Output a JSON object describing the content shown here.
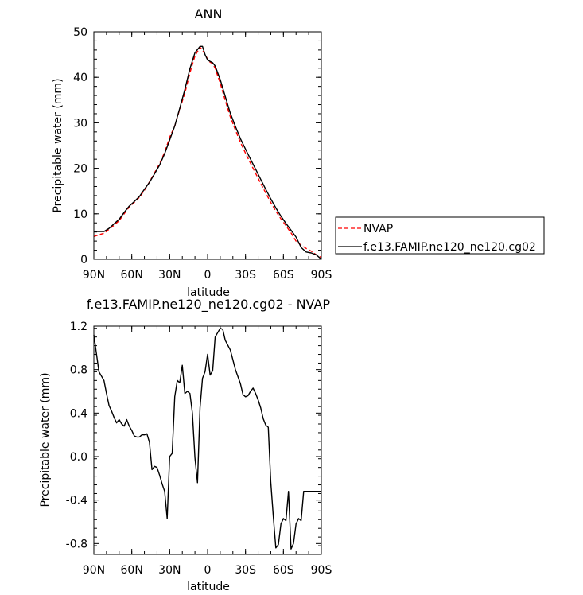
{
  "chart_data": [
    {
      "type": "line",
      "title": "ANN",
      "xlabel": "latitude",
      "ylabel": "Precipitable water (mm)",
      "xlim": [
        90,
        -90
      ],
      "ylim": [
        0,
        50
      ],
      "xticks": [
        {
          "v": 90,
          "label": "90N"
        },
        {
          "v": 60,
          "label": "60N"
        },
        {
          "v": 30,
          "label": "30N"
        },
        {
          "v": 0,
          "label": "0"
        },
        {
          "v": -30,
          "label": "30S"
        },
        {
          "v": -60,
          "label": "60S"
        },
        {
          "v": -90,
          "label": "90S"
        }
      ],
      "yticks": [
        {
          "v": 0,
          "label": "0"
        },
        {
          "v": 10,
          "label": "10"
        },
        {
          "v": 20,
          "label": "20"
        },
        {
          "v": 30,
          "label": "30"
        },
        {
          "v": 40,
          "label": "40"
        },
        {
          "v": 50,
          "label": "50"
        }
      ],
      "legend_position": "right",
      "series": [
        {
          "name": "NVAP",
          "color": "#ff0000",
          "dash": "dashed",
          "x": [
            90,
            86,
            82,
            78,
            74,
            70,
            66,
            62,
            58,
            54,
            50,
            46,
            42,
            38,
            34,
            30,
            26,
            22,
            18,
            14,
            10,
            6,
            4,
            2,
            0,
            -2,
            -4,
            -6,
            -10,
            -14,
            -18,
            -22,
            -26,
            -30,
            -34,
            -38,
            -42,
            -46,
            -50,
            -54,
            -58,
            -62,
            -66,
            -70,
            -74,
            -78,
            -82,
            -86,
            -90
          ],
          "y": [
            5.0,
            5.4,
            5.7,
            6.6,
            7.5,
            8.5,
            10.0,
            11.5,
            12.5,
            13.6,
            15.2,
            17.0,
            19.0,
            21.0,
            23.5,
            26.8,
            29.3,
            33.0,
            36.5,
            41.0,
            44.7,
            46.6,
            46.0,
            45.0,
            44.0,
            43.3,
            43.0,
            42.0,
            38.7,
            34.9,
            31.3,
            28.4,
            25.7,
            23.3,
            21.1,
            18.9,
            16.7,
            14.6,
            12.5,
            10.6,
            8.9,
            7.4,
            5.8,
            4.0,
            3.1,
            2.4,
            1.8,
            1.0,
            0.4
          ]
        },
        {
          "name": "f.e13.FAMIP.ne120_ne120.cg02",
          "color": "#000000",
          "dash": "solid",
          "x": [
            90,
            86,
            82,
            78,
            74,
            70,
            66,
            62,
            58,
            54,
            50,
            46,
            42,
            38,
            34,
            30,
            26,
            22,
            18,
            14,
            10,
            6,
            4,
            2,
            0,
            -2,
            -4,
            -6,
            -10,
            -14,
            -18,
            -22,
            -26,
            -30,
            -34,
            -38,
            -42,
            -46,
            -50,
            -54,
            -58,
            -62,
            -66,
            -70,
            -74,
            -78,
            -82,
            -86,
            -90
          ],
          "y": [
            6.1,
            6.1,
            6.1,
            6.8,
            7.8,
            8.8,
            10.3,
            11.7,
            12.7,
            13.8,
            15.4,
            16.9,
            18.8,
            20.7,
            23.2,
            26.2,
            29.3,
            33.2,
            37.3,
            41.9,
            45.4,
            46.8,
            46.8,
            45.0,
            43.8,
            43.5,
            43.2,
            42.5,
            39.5,
            35.8,
            32.1,
            29.2,
            26.5,
            24.2,
            22.0,
            19.8,
            17.6,
            15.4,
            13.3,
            11.3,
            9.5,
            7.9,
            6.4,
            4.9,
            2.6,
            1.6,
            1.4,
            1.0,
            0.0
          ]
        }
      ]
    },
    {
      "type": "line",
      "title": "f.e13.FAMIP.ne120_ne120.cg02 - NVAP",
      "xlabel": "latitude",
      "ylabel": "Precipitable water (mm)",
      "xlim": [
        90,
        -90
      ],
      "ylim": [
        -0.9,
        1.2
      ],
      "xticks": [
        {
          "v": 90,
          "label": "90N"
        },
        {
          "v": 60,
          "label": "60N"
        },
        {
          "v": 30,
          "label": "30N"
        },
        {
          "v": 0,
          "label": "0"
        },
        {
          "v": -30,
          "label": "30S"
        },
        {
          "v": -60,
          "label": "60S"
        },
        {
          "v": -90,
          "label": "90S"
        }
      ],
      "yticks": [
        {
          "v": -0.8,
          "label": "-0.8"
        },
        {
          "v": -0.4,
          "label": "-0.4"
        },
        {
          "v": 0.0,
          "label": "0.0"
        },
        {
          "v": 0.4,
          "label": "0.4"
        },
        {
          "v": 0.8,
          "label": "0.8"
        },
        {
          "v": 1.2,
          "label": "1.2"
        }
      ],
      "series": [
        {
          "color": "#000000",
          "dash": "solid",
          "x": [
            90,
            88,
            86,
            82,
            80,
            78,
            76,
            74,
            72,
            70,
            68,
            66,
            64,
            62,
            60,
            58,
            56,
            54,
            52,
            50,
            48,
            46,
            44,
            42,
            40,
            38,
            36,
            34,
            32,
            30,
            28,
            26,
            24,
            22,
            20,
            18,
            16,
            14,
            12,
            10,
            8,
            6,
            4,
            2,
            0,
            -2,
            -4,
            -6,
            -10,
            -12,
            -14,
            -18,
            -22,
            -26,
            -28,
            -30,
            -32,
            -34,
            -36,
            -38,
            -40,
            -42,
            -44,
            -46,
            -48,
            -50,
            -52,
            -54,
            -56,
            -58,
            -60,
            -62,
            -64,
            -66,
            -68,
            -70,
            -72,
            -74,
            -76,
            -78,
            -80,
            -82,
            -84,
            -86,
            -88,
            -90
          ],
          "y": [
            1.12,
            0.95,
            0.78,
            0.7,
            0.58,
            0.47,
            0.42,
            0.36,
            0.31,
            0.34,
            0.3,
            0.28,
            0.34,
            0.28,
            0.24,
            0.19,
            0.18,
            0.18,
            0.2,
            0.2,
            0.21,
            0.13,
            -0.12,
            -0.09,
            -0.1,
            -0.17,
            -0.25,
            -0.32,
            -0.57,
            0.0,
            0.03,
            0.55,
            0.7,
            0.68,
            0.84,
            0.58,
            0.6,
            0.58,
            0.4,
            -0.01,
            -0.24,
            0.45,
            0.72,
            0.78,
            0.94,
            0.75,
            0.79,
            1.1,
            1.18,
            1.17,
            1.07,
            0.98,
            0.8,
            0.67,
            0.57,
            0.55,
            0.56,
            0.6,
            0.63,
            0.58,
            0.52,
            0.45,
            0.35,
            0.29,
            0.27,
            -0.23,
            -0.55,
            -0.84,
            -0.81,
            -0.62,
            -0.57,
            -0.59,
            -0.32,
            -0.85,
            -0.8,
            -0.62,
            -0.57,
            -0.59,
            -0.32,
            -0.32,
            -0.32,
            -0.32,
            -0.32,
            -0.32,
            -0.32,
            -0.32
          ]
        }
      ]
    }
  ]
}
